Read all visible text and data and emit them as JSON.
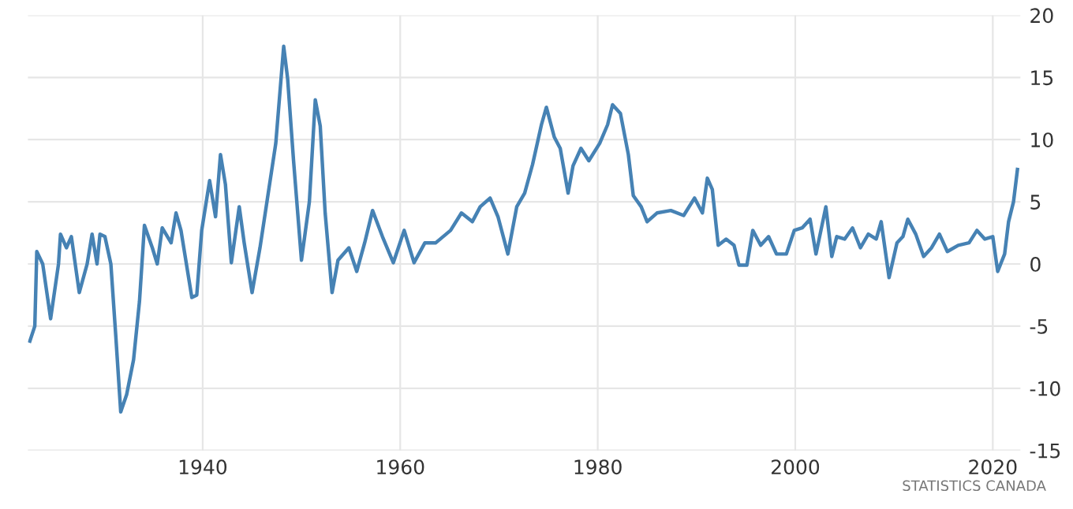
{
  "chart_data": {
    "type": "line",
    "x": [
      1922.5,
      1923,
      1923.2,
      1923.8,
      1924.6,
      1925.4,
      1925.6,
      1926.2,
      1926.7,
      1927.5,
      1928.3,
      1928.8,
      1929.3,
      1929.6,
      1930.1,
      1930.7,
      1931.2,
      1931.7,
      1932.3,
      1933,
      1933.6,
      1934.1,
      1934.9,
      1935.4,
      1935.9,
      1936.8,
      1937.3,
      1937.8,
      1938.9,
      1939.4,
      1939.9,
      1940.7,
      1941.3,
      1941.8,
      1942.3,
      1942.9,
      1943.7,
      1944.2,
      1945,
      1945.8,
      1946.6,
      1947.4,
      1948.2,
      1948.6,
      1949.2,
      1950,
      1950.8,
      1951.4,
      1951.9,
      1952.4,
      1953.1,
      1953.7,
      1954.8,
      1955.6,
      1956.4,
      1957.2,
      1958.2,
      1959.3,
      1960.4,
      1961.4,
      1962.5,
      1963.6,
      1965.1,
      1966.2,
      1967.3,
      1968.1,
      1969.1,
      1969.9,
      1970.9,
      1971.8,
      1972.6,
      1973.4,
      1974.3,
      1974.8,
      1975.6,
      1976.2,
      1977,
      1977.5,
      1978.3,
      1979.1,
      1980.2,
      1981,
      1981.5,
      1982.3,
      1983.1,
      1983.6,
      1984.4,
      1985,
      1986,
      1987.4,
      1988.7,
      1989.8,
      1990.6,
      1991.1,
      1991.6,
      1992.2,
      1993,
      1993.8,
      1994.3,
      1995.1,
      1995.7,
      1996.5,
      1997.3,
      1998.1,
      1999.1,
      1999.9,
      2000.7,
      2001.5,
      2002.1,
      2002.6,
      2003.1,
      2003.7,
      2004.2,
      2005,
      2005.8,
      2006.6,
      2007.4,
      2008.2,
      2008.7,
      2009.5,
      2010.3,
      2010.9,
      2011.4,
      2012.2,
      2013,
      2013.8,
      2014.6,
      2015.4,
      2016.5,
      2017.6,
      2018.4,
      2019.2,
      2020,
      2020.5,
      2021.2,
      2021.6,
      2022.1,
      2022.5
    ],
    "series": [
      {
        "color": "#4682b4",
        "values": [
          -6.2,
          -5,
          1,
          0,
          -4.4,
          0,
          2.4,
          1.3,
          2.2,
          -2.3,
          0,
          2.4,
          0,
          2.4,
          2.2,
          0,
          -5.8,
          -11.9,
          -10.5,
          -7.7,
          -3,
          3.1,
          1.3,
          0,
          2.9,
          1.7,
          4.1,
          2.7,
          -2.7,
          -2.5,
          2.7,
          6.7,
          3.8,
          8.8,
          6.4,
          0.1,
          4.6,
          1.7,
          -2.3,
          1.3,
          5.5,
          9.7,
          17.5,
          14.9,
          8.3,
          0.3,
          5,
          13.2,
          11.1,
          4.1,
          -2.3,
          0.3,
          1.3,
          -0.6,
          1.7,
          4.3,
          2.2,
          0.1,
          2.7,
          0.1,
          1.7,
          1.7,
          2.7,
          4.1,
          3.4,
          4.6,
          5.3,
          3.8,
          0.8,
          4.6,
          5.7,
          8,
          11.2,
          12.6,
          10.2,
          9.3,
          5.7,
          7.9,
          9.3,
          8.3,
          9.7,
          11.2,
          12.8,
          12.1,
          8.8,
          5.5,
          4.6,
          3.4,
          4.1,
          4.3,
          3.9,
          5.3,
          4.1,
          6.9,
          6,
          1.5,
          2,
          1.5,
          -0.1,
          -0.1,
          2.7,
          1.5,
          2.2,
          0.8,
          0.8,
          2.7,
          2.9,
          3.6,
          0.8,
          2.7,
          4.6,
          0.6,
          2.2,
          2,
          2.9,
          1.3,
          2.4,
          2,
          3.4,
          -1.1,
          1.7,
          2.2,
          3.6,
          2.4,
          0.6,
          1.3,
          2.4,
          1,
          1.5,
          1.7,
          2.7,
          2,
          2.2,
          -0.6,
          0.8,
          3.4,
          5,
          7.6
        ]
      }
    ],
    "xlim": [
      1922.3,
      2022.8
    ],
    "xticks": [
      1940,
      1960,
      1980,
      2000,
      2020
    ],
    "ylim": [
      -15,
      20
    ],
    "yticks": [
      -15,
      -10,
      -5,
      0,
      5,
      10,
      15,
      20
    ],
    "grid": true,
    "marker": "none",
    "line_style": "solid",
    "annotations": [
      "STATISTICS CANADA"
    ]
  }
}
